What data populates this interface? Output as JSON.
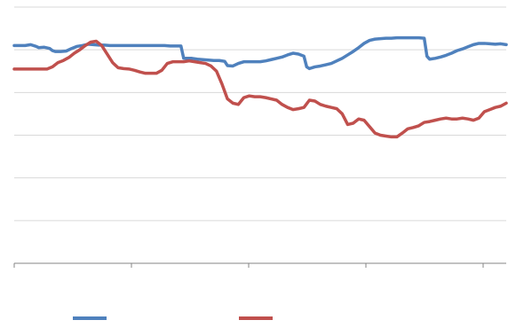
{
  "chart_data": {
    "type": "line",
    "title": "",
    "xlabel": "",
    "ylabel": "",
    "ylim": [
      0,
      6
    ],
    "y_gridlines": [
      1,
      2,
      3,
      4,
      5,
      6
    ],
    "x_tick_count": 5,
    "grid": true,
    "legend": "bottom",
    "series": [
      {
        "name": "",
        "color": "#4f81bd",
        "values": [
          [
            0,
            5.1
          ],
          [
            2,
            5.1
          ],
          [
            4,
            5.1
          ],
          [
            6,
            5.12
          ],
          [
            8,
            5.08
          ],
          [
            9,
            5.05
          ],
          [
            11,
            5.06
          ],
          [
            13,
            5.03
          ],
          [
            14,
            4.98
          ],
          [
            15,
            4.96
          ],
          [
            17,
            4.96
          ],
          [
            19,
            4.97
          ],
          [
            21,
            5.03
          ],
          [
            23,
            5.08
          ],
          [
            25,
            5.1
          ],
          [
            27,
            5.13
          ],
          [
            29,
            5.12
          ],
          [
            31,
            5.11
          ],
          [
            33,
            5.11
          ],
          [
            35,
            5.1
          ],
          [
            37,
            5.1
          ],
          [
            39,
            5.1
          ],
          [
            41,
            5.1
          ],
          [
            43,
            5.1
          ],
          [
            45,
            5.1
          ],
          [
            47,
            5.1
          ],
          [
            49,
            5.1
          ],
          [
            51,
            5.1
          ],
          [
            53,
            5.1
          ],
          [
            55,
            5.1
          ],
          [
            57,
            5.09
          ],
          [
            59,
            5.09
          ],
          [
            61,
            5.09
          ],
          [
            62,
            4.8
          ],
          [
            63,
            4.8
          ],
          [
            65,
            4.8
          ],
          [
            67,
            4.78
          ],
          [
            69,
            4.77
          ],
          [
            71,
            4.76
          ],
          [
            73,
            4.75
          ],
          [
            75,
            4.75
          ],
          [
            77,
            4.73
          ],
          [
            78,
            4.63
          ],
          [
            80,
            4.62
          ],
          [
            82,
            4.68
          ],
          [
            84,
            4.72
          ],
          [
            86,
            4.72
          ],
          [
            88,
            4.72
          ],
          [
            90,
            4.72
          ],
          [
            92,
            4.74
          ],
          [
            94,
            4.77
          ],
          [
            96,
            4.8
          ],
          [
            98,
            4.83
          ],
          [
            100,
            4.88
          ],
          [
            102,
            4.92
          ],
          [
            104,
            4.9
          ],
          [
            106,
            4.85
          ],
          [
            107,
            4.6
          ],
          [
            108,
            4.56
          ],
          [
            110,
            4.6
          ],
          [
            112,
            4.62
          ],
          [
            114,
            4.65
          ],
          [
            116,
            4.68
          ],
          [
            118,
            4.74
          ],
          [
            120,
            4.8
          ],
          [
            122,
            4.88
          ],
          [
            124,
            4.96
          ],
          [
            126,
            5.05
          ],
          [
            128,
            5.15
          ],
          [
            130,
            5.22
          ],
          [
            132,
            5.25
          ],
          [
            134,
            5.26
          ],
          [
            136,
            5.27
          ],
          [
            138,
            5.27
          ],
          [
            140,
            5.28
          ],
          [
            142,
            5.28
          ],
          [
            144,
            5.28
          ],
          [
            146,
            5.28
          ],
          [
            148,
            5.28
          ],
          [
            150,
            5.27
          ],
          [
            151,
            4.85
          ],
          [
            152,
            4.78
          ],
          [
            154,
            4.8
          ],
          [
            156,
            4.83
          ],
          [
            158,
            4.87
          ],
          [
            160,
            4.92
          ],
          [
            162,
            4.98
          ],
          [
            164,
            5.02
          ],
          [
            166,
            5.07
          ],
          [
            168,
            5.12
          ],
          [
            170,
            5.15
          ],
          [
            172,
            5.15
          ],
          [
            174,
            5.14
          ],
          [
            176,
            5.13
          ],
          [
            178,
            5.14
          ],
          [
            180,
            5.12
          ]
        ]
      },
      {
        "name": "",
        "color": "#c0504d",
        "values": [
          [
            0,
            4.55
          ],
          [
            2,
            4.55
          ],
          [
            4,
            4.55
          ],
          [
            6,
            4.55
          ],
          [
            8,
            4.55
          ],
          [
            10,
            4.55
          ],
          [
            12,
            4.55
          ],
          [
            14,
            4.6
          ],
          [
            16,
            4.7
          ],
          [
            18,
            4.75
          ],
          [
            20,
            4.82
          ],
          [
            22,
            4.92
          ],
          [
            24,
            5.0
          ],
          [
            26,
            5.1
          ],
          [
            28,
            5.18
          ],
          [
            30,
            5.2
          ],
          [
            32,
            5.1
          ],
          [
            34,
            4.9
          ],
          [
            36,
            4.7
          ],
          [
            38,
            4.58
          ],
          [
            40,
            4.56
          ],
          [
            42,
            4.55
          ],
          [
            44,
            4.52
          ],
          [
            46,
            4.48
          ],
          [
            48,
            4.45
          ],
          [
            50,
            4.45
          ],
          [
            52,
            4.45
          ],
          [
            54,
            4.52
          ],
          [
            56,
            4.68
          ],
          [
            58,
            4.72
          ],
          [
            60,
            4.72
          ],
          [
            62,
            4.72
          ],
          [
            64,
            4.74
          ],
          [
            66,
            4.72
          ],
          [
            68,
            4.7
          ],
          [
            70,
            4.68
          ],
          [
            72,
            4.62
          ],
          [
            74,
            4.5
          ],
          [
            76,
            4.2
          ],
          [
            78,
            3.85
          ],
          [
            80,
            3.75
          ],
          [
            82,
            3.72
          ],
          [
            84,
            3.88
          ],
          [
            86,
            3.92
          ],
          [
            88,
            3.9
          ],
          [
            90,
            3.9
          ],
          [
            92,
            3.88
          ],
          [
            94,
            3.85
          ],
          [
            96,
            3.82
          ],
          [
            98,
            3.72
          ],
          [
            100,
            3.65
          ],
          [
            102,
            3.6
          ],
          [
            104,
            3.62
          ],
          [
            106,
            3.65
          ],
          [
            108,
            3.82
          ],
          [
            110,
            3.8
          ],
          [
            112,
            3.72
          ],
          [
            114,
            3.68
          ],
          [
            116,
            3.65
          ],
          [
            118,
            3.62
          ],
          [
            120,
            3.5
          ],
          [
            122,
            3.25
          ],
          [
            124,
            3.28
          ],
          [
            126,
            3.38
          ],
          [
            128,
            3.35
          ],
          [
            130,
            3.2
          ],
          [
            132,
            3.05
          ],
          [
            134,
            3.0
          ],
          [
            136,
            2.98
          ],
          [
            138,
            2.96
          ],
          [
            140,
            2.96
          ],
          [
            142,
            3.05
          ],
          [
            144,
            3.15
          ],
          [
            146,
            3.18
          ],
          [
            148,
            3.22
          ],
          [
            150,
            3.3
          ],
          [
            152,
            3.32
          ],
          [
            154,
            3.35
          ],
          [
            156,
            3.38
          ],
          [
            158,
            3.4
          ],
          [
            160,
            3.38
          ],
          [
            162,
            3.38
          ],
          [
            164,
            3.4
          ],
          [
            166,
            3.38
          ],
          [
            168,
            3.35
          ],
          [
            170,
            3.4
          ],
          [
            172,
            3.55
          ],
          [
            174,
            3.6
          ],
          [
            176,
            3.65
          ],
          [
            178,
            3.68
          ],
          [
            180,
            3.75
          ]
        ]
      }
    ]
  }
}
